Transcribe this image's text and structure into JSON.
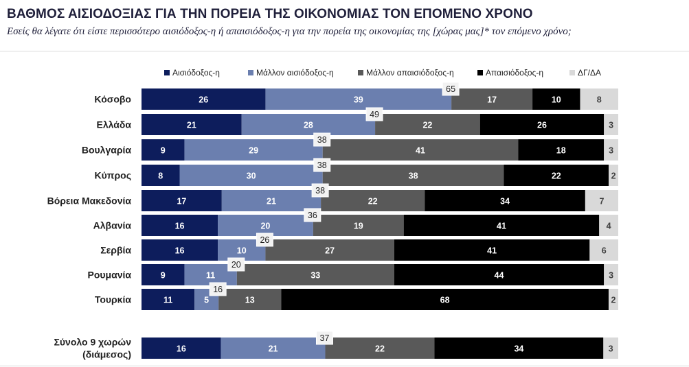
{
  "header": {
    "title": "ΒΑΘΜΟΣ ΑΙΣΙΟΔΟΞΙΑΣ ΓΙΑ ΤΗΝ ΠΟΡΕΙΑ ΤΗΣ ΟΙΚΟΝΟΜΙΑΣ ΤΟΝ ΕΠΟΜΕΝΟ ΧΡΟΝΟ",
    "subtitle": "Εσείς θα λέγατε ότι είστε περισσότερο αισιόδοξος-η ή απαισιόδοξος-η για την πορεία της οικονομίας της [χώρας μας]* τον επόμενο χρόνο;"
  },
  "chart_data": {
    "type": "bar",
    "orientation": "horizontal",
    "stacked": true,
    "percent_scale": true,
    "categories": [
      "Κόσοβο",
      "Ελλάδα",
      "Βουλγαρία",
      "Κύπρος",
      "Βόρεια Μακεδονία",
      "Αλβανία",
      "Σερβία",
      "Ρουμανία",
      "Τουρκία",
      "Σύνολο 9 χωρών\n(διάμεσος)"
    ],
    "series": [
      {
        "name": "Αισιόδοξος-η",
        "color": "#0d1d5c",
        "label_color": "#ffffff",
        "values": [
          26,
          21,
          9,
          8,
          17,
          16,
          16,
          9,
          11,
          16
        ]
      },
      {
        "name": "Μάλλον αισιόδοξος-η",
        "color": "#6b7faf",
        "label_color": "#ffffff",
        "values": [
          39,
          28,
          29,
          30,
          21,
          20,
          10,
          11,
          5,
          21
        ]
      },
      {
        "name": "Μάλλον απαισιόδοξος-η",
        "color": "#595959",
        "label_color": "#ffffff",
        "values": [
          17,
          22,
          41,
          38,
          22,
          19,
          27,
          33,
          13,
          22
        ]
      },
      {
        "name": "Απαισιόδοξος-η",
        "color": "#000000",
        "label_color": "#ffffff",
        "values": [
          10,
          26,
          18,
          22,
          34,
          41,
          41,
          44,
          68,
          34
        ]
      },
      {
        "name": "ΔΓ/ΔΑ",
        "color": "#d9d9d9",
        "label_color": "#404040",
        "values": [
          8,
          3,
          3,
          2,
          7,
          4,
          6,
          3,
          2,
          3
        ]
      }
    ],
    "optimism_totals": [
      65,
      49,
      38,
      38,
      38,
      36,
      26,
      20,
      16,
      37
    ],
    "legend_position": "top",
    "grid": false
  }
}
